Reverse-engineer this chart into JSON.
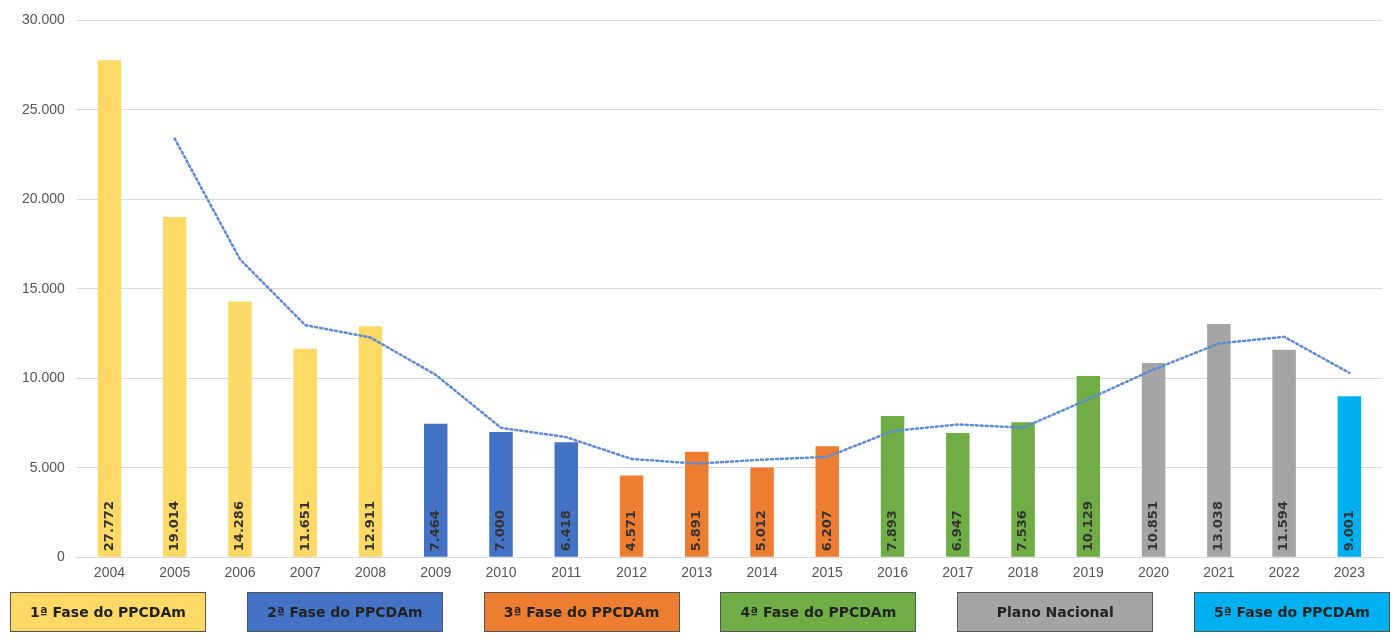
{
  "chart_data": {
    "type": "bar",
    "categories": [
      "2004",
      "2005",
      "2006",
      "2007",
      "2008",
      "2009",
      "2010",
      "2011",
      "2012",
      "2013",
      "2014",
      "2015",
      "2016",
      "2017",
      "2018",
      "2019",
      "2020",
      "2021",
      "2022",
      "2023"
    ],
    "series": [
      {
        "name": "1ª Fase do PPCDAm",
        "color": "#ffd966",
        "values": [
          27772,
          19014,
          14286,
          11651,
          12911,
          null,
          null,
          null,
          null,
          null,
          null,
          null,
          null,
          null,
          null,
          null,
          null,
          null,
          null,
          null
        ],
        "value_labels": [
          "27.772",
          "19.014",
          "14.286",
          "11.651",
          "12.911",
          null,
          null,
          null,
          null,
          null,
          null,
          null,
          null,
          null,
          null,
          null,
          null,
          null,
          null,
          null
        ]
      },
      {
        "name": "2ª Fase do PPCDAm",
        "color": "#4472c4",
        "values": [
          null,
          null,
          null,
          null,
          null,
          7464,
          7000,
          6418,
          null,
          null,
          null,
          null,
          null,
          null,
          null,
          null,
          null,
          null,
          null,
          null
        ],
        "value_labels": [
          null,
          null,
          null,
          null,
          null,
          "7.464",
          "7.000",
          "6.418",
          null,
          null,
          null,
          null,
          null,
          null,
          null,
          null,
          null,
          null,
          null,
          null
        ]
      },
      {
        "name": "3ª Fase do PPCDAm",
        "color": "#ed7d31",
        "values": [
          null,
          null,
          null,
          null,
          null,
          null,
          null,
          null,
          4571,
          5891,
          5012,
          6207,
          null,
          null,
          null,
          null,
          null,
          null,
          null,
          null
        ],
        "value_labels": [
          null,
          null,
          null,
          null,
          null,
          null,
          null,
          null,
          "4.571",
          "5.891",
          "5.012",
          "6.207",
          null,
          null,
          null,
          null,
          null,
          null,
          null,
          null
        ]
      },
      {
        "name": "4ª Fase do PPCDAm",
        "color": "#70ad47",
        "values": [
          null,
          null,
          null,
          null,
          null,
          null,
          null,
          null,
          null,
          null,
          null,
          null,
          7893,
          6947,
          7536,
          10129,
          null,
          null,
          null,
          null
        ],
        "value_labels": [
          null,
          null,
          null,
          null,
          null,
          null,
          null,
          null,
          null,
          null,
          null,
          null,
          "7.893",
          "6.947",
          "7.536",
          "10.129",
          null,
          null,
          null,
          null
        ]
      },
      {
        "name": "Plano Nacional",
        "color": "#a5a5a5",
        "values": [
          null,
          null,
          null,
          null,
          null,
          null,
          null,
          null,
          null,
          null,
          null,
          null,
          null,
          null,
          null,
          null,
          10851,
          13038,
          11594,
          null
        ],
        "value_labels": [
          null,
          null,
          null,
          null,
          null,
          null,
          null,
          null,
          null,
          null,
          null,
          null,
          null,
          null,
          null,
          null,
          "10.851",
          "13.038",
          "11.594",
          null
        ]
      },
      {
        "name": "5ª Fase do PPCDAm",
        "color": "#00b0f0",
        "values": [
          null,
          null,
          null,
          null,
          null,
          null,
          null,
          null,
          null,
          null,
          null,
          null,
          null,
          null,
          null,
          null,
          null,
          null,
          null,
          9001
        ],
        "value_labels": [
          null,
          null,
          null,
          null,
          null,
          null,
          null,
          null,
          null,
          null,
          null,
          null,
          null,
          null,
          null,
          null,
          null,
          null,
          null,
          "9.001"
        ]
      },
      {
        "type": "line",
        "color": "#5b8bd6",
        "line_style": "dotted",
        "marker": "none",
        "values": [
          null,
          23390,
          16650,
          12970,
          12280,
          10190,
          7230,
          6710,
          5490,
          5230,
          5450,
          5610,
          7050,
          7420,
          7240,
          8830,
          10490,
          11940,
          12320,
          10300
        ]
      }
    ],
    "ylim": [
      0,
      30000
    ],
    "yticks": [
      {
        "value": 0,
        "label": "0"
      },
      {
        "value": 5000,
        "label": "5.000"
      },
      {
        "value": 10000,
        "label": "10.000"
      },
      {
        "value": 15000,
        "label": "15.000"
      },
      {
        "value": 20000,
        "label": "20.000"
      },
      {
        "value": 25000,
        "label": "25.000"
      },
      {
        "value": 30000,
        "label": "30.000"
      }
    ],
    "grid": "y",
    "legend": "bottom"
  }
}
